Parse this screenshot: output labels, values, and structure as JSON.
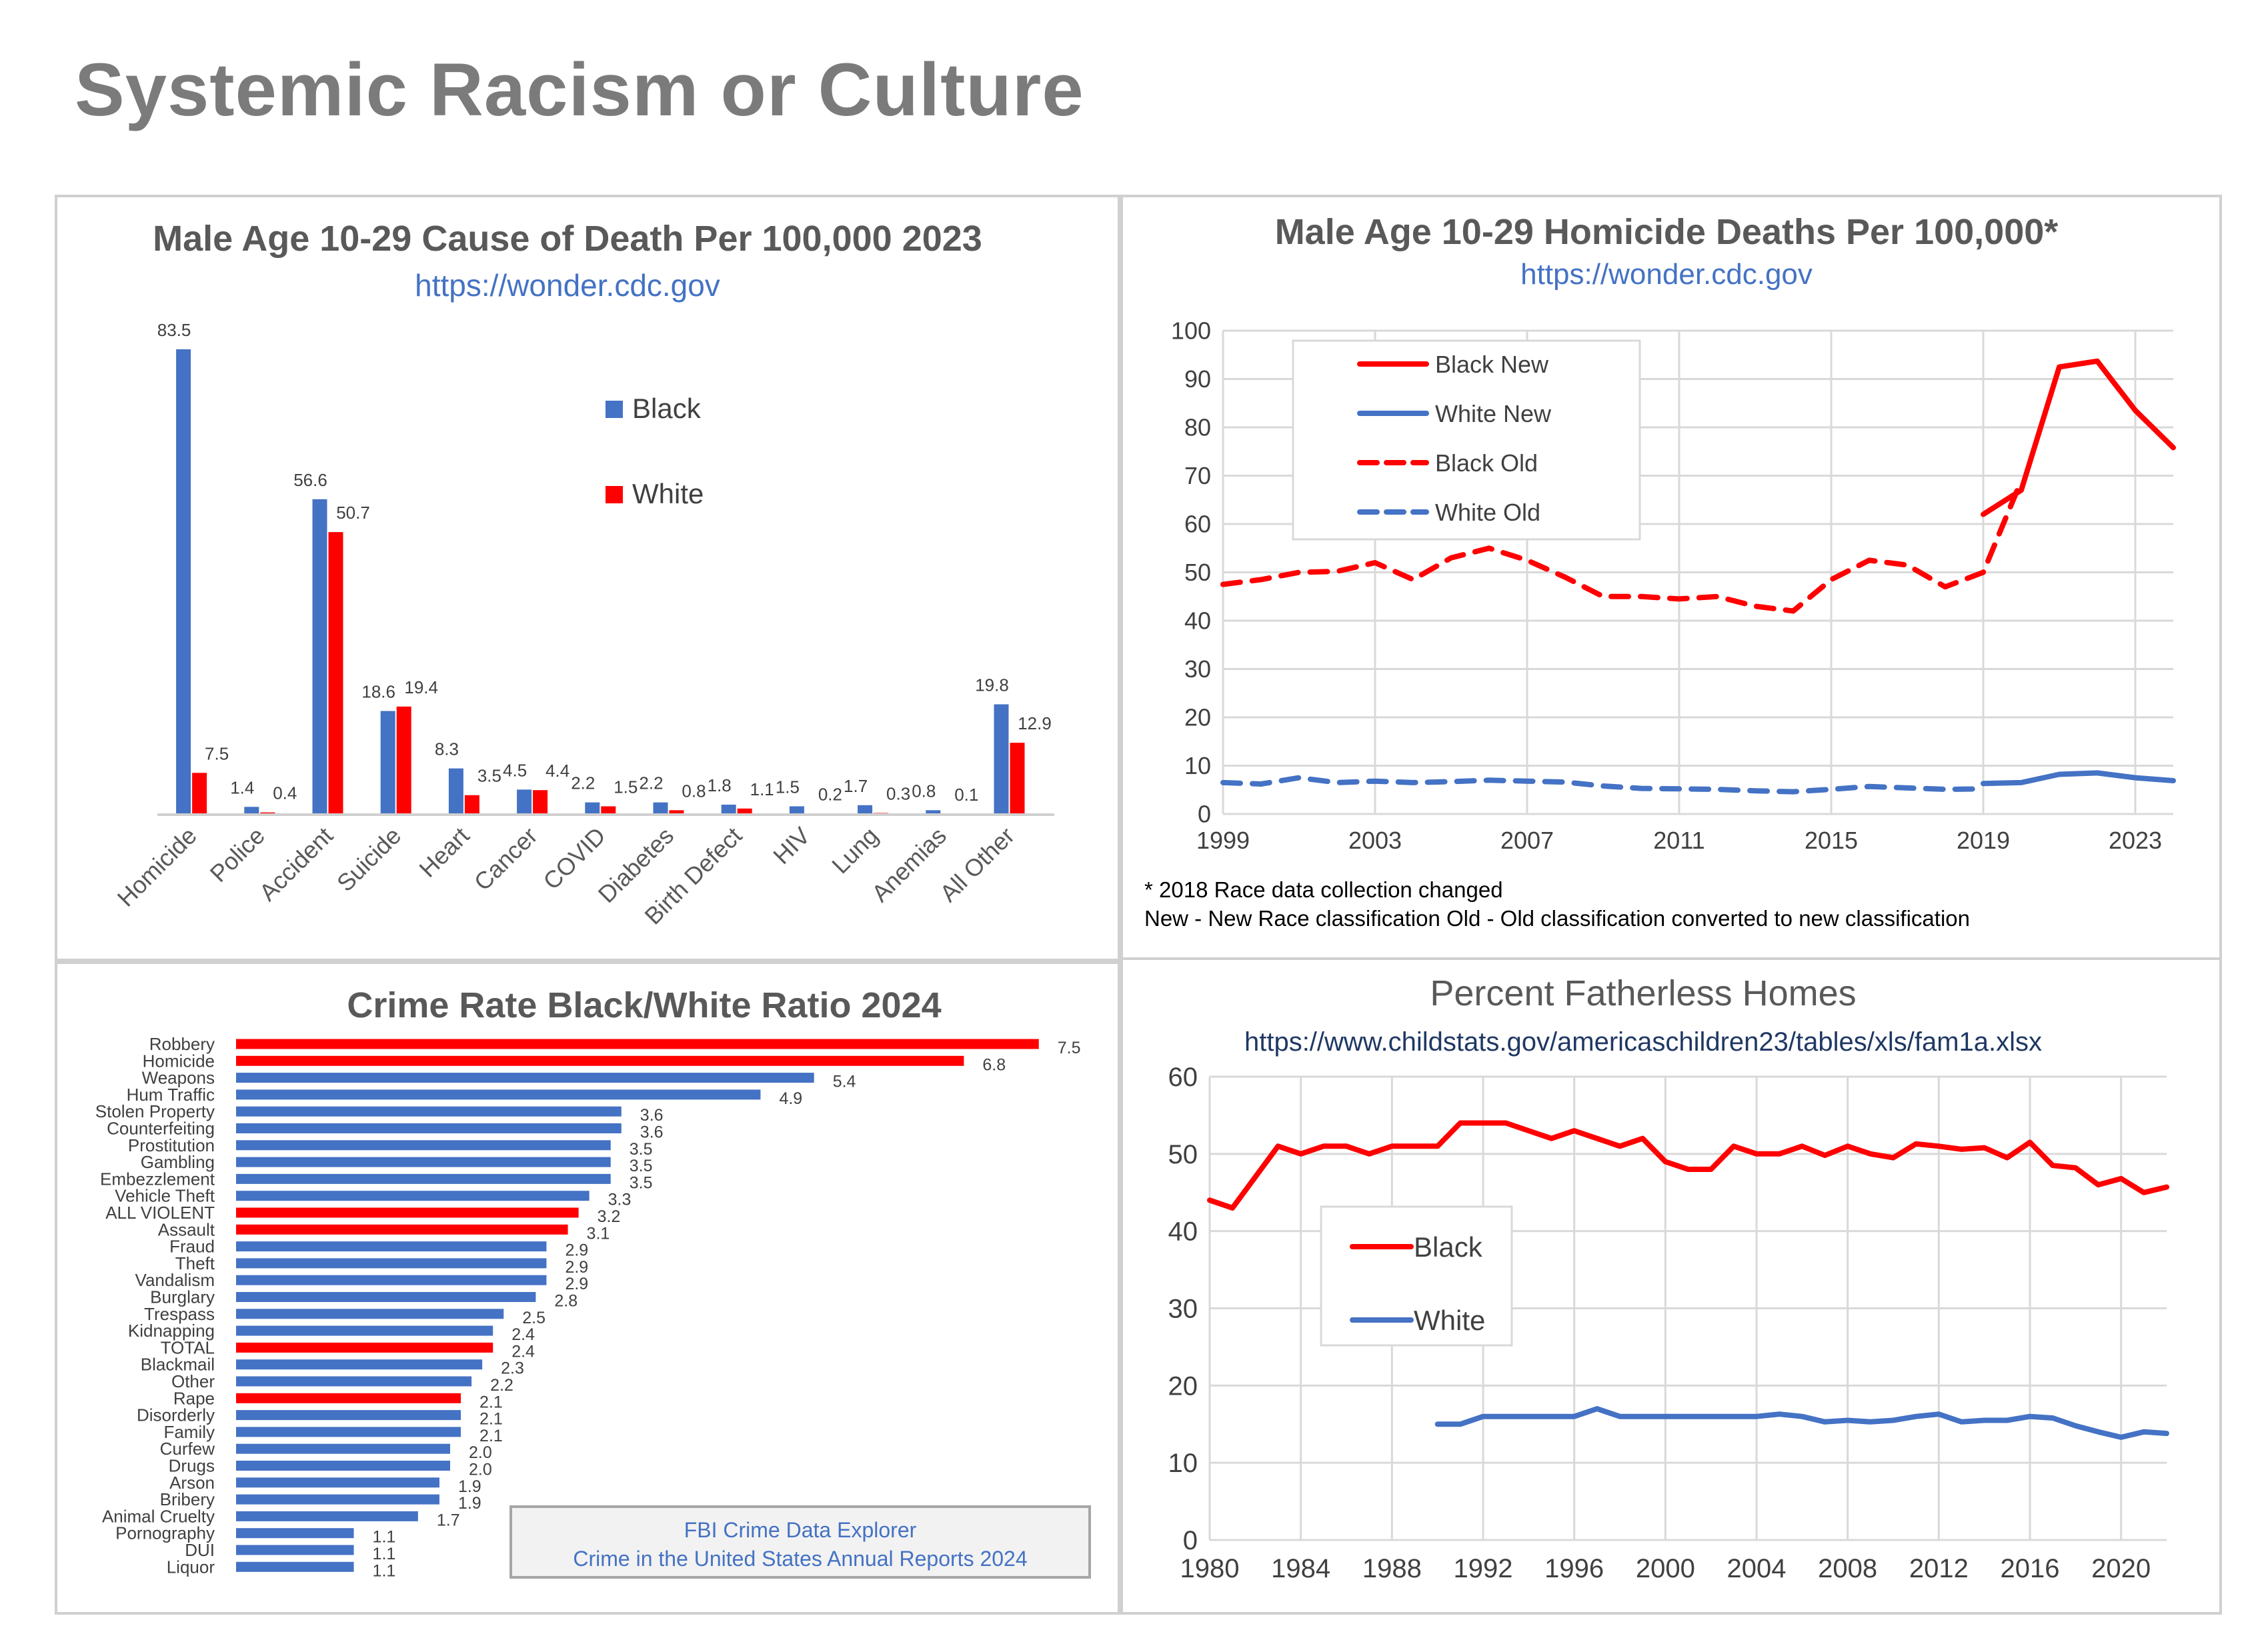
{
  "page": {
    "title": "Systemic Racism or Culture"
  },
  "colors": {
    "black_series": "#ff0000",
    "white_series": "#4472c4",
    "link": "#4472c4",
    "title_gray": "#7b7b7b"
  },
  "chart_data": [
    {
      "type": "bar",
      "title": "Male Age 10-29 Cause of Death Per 100,000 2023",
      "subtitle": "https://wonder.cdc.gov",
      "categories": [
        "Homicide",
        "Police",
        "Accident",
        "Suicide",
        "Heart",
        "Cancer",
        "COVID",
        "Diabetes",
        "Birth Defect",
        "HIV",
        "Lung",
        "Anemias",
        "All Other"
      ],
      "series": [
        {
          "name": "Black",
          "color": "#4472c4",
          "values": [
            83.5,
            1.4,
            56.6,
            18.6,
            8.3,
            4.5,
            2.2,
            2.2,
            1.8,
            1.5,
            1.7,
            0.8,
            19.8
          ],
          "labels": [
            "83.5",
            "1.4",
            "56.6",
            "18.6",
            "8.3",
            "4.5",
            "2.2",
            "2.2",
            "1.8",
            "1.5",
            "1.7",
            "0.8",
            "19.8"
          ]
        },
        {
          "name": "White",
          "color": "#ff0000",
          "values": [
            7.5,
            0.4,
            50.7,
            19.4,
            3.5,
            4.4,
            1.5,
            0.8,
            1.1,
            0.2,
            0.3,
            0.1,
            12.9
          ],
          "labels": [
            "7.5",
            "0.4",
            "50.7",
            "19.4",
            "3.5",
            "4.4",
            "1.5",
            "0.8",
            "1.1",
            "0.2",
            "0.3",
            "0.1",
            "12.9"
          ]
        }
      ],
      "ylim": [
        0,
        90
      ],
      "legend": "right",
      "grid": false
    },
    {
      "type": "line",
      "title": "Male Age 10-29 Homicide Deaths Per 100,000*",
      "subtitle": "https://wonder.cdc.gov",
      "ylim": [
        0,
        100
      ],
      "yticks": [
        "0",
        "10",
        "20",
        "30",
        "40",
        "50",
        "60",
        "70",
        "80",
        "90",
        "100"
      ],
      "xlim": [
        1999,
        2024
      ],
      "xticks": [
        "1999",
        "2003",
        "2007",
        "2011",
        "2015",
        "2019",
        "2023"
      ],
      "series": [
        {
          "name": "Black New",
          "color": "#ff0000",
          "dash": "solid",
          "x": [
            2019,
            2020,
            2021,
            2022,
            2023,
            2024
          ],
          "y": [
            62,
            67,
            92.5,
            93.7,
            83.5,
            75.8
          ]
        },
        {
          "name": "White New",
          "color": "#4472c4",
          "dash": "solid",
          "x": [
            2019,
            2020,
            2021,
            2022,
            2023,
            2024
          ],
          "y": [
            6.3,
            6.5,
            8.2,
            8.5,
            7.5,
            6.9
          ]
        },
        {
          "name": "Black Old",
          "color": "#ff0000",
          "dash": "dashed",
          "x": [
            1999,
            2000,
            2001,
            2002,
            2003,
            2004,
            2005,
            2006,
            2007,
            2008,
            2009,
            2010,
            2011,
            2012,
            2013,
            2014,
            2015,
            2016,
            2017,
            2018,
            2019,
            2020
          ],
          "y": [
            47.5,
            48.5,
            50,
            50.2,
            52,
            48.5,
            53,
            55,
            52.5,
            49,
            45,
            45,
            44.5,
            45,
            43,
            42,
            48.5,
            52.5,
            51.5,
            47,
            50,
            69
          ]
        },
        {
          "name": "White Old",
          "color": "#4472c4",
          "dash": "dashed",
          "x": [
            1999,
            2000,
            2001,
            2002,
            2003,
            2004,
            2005,
            2006,
            2007,
            2008,
            2009,
            2010,
            2011,
            2012,
            2013,
            2014,
            2015,
            2016,
            2017,
            2018,
            2019
          ],
          "y": [
            6.5,
            6.2,
            7.5,
            6.5,
            6.8,
            6.5,
            6.7,
            7,
            6.8,
            6.6,
            5.8,
            5.3,
            5.2,
            5.1,
            4.8,
            4.6,
            5.1,
            5.7,
            5.4,
            5.1,
            5.2
          ]
        }
      ],
      "legend": "top-left",
      "footnotes": [
        "* 2018 Race data collection changed",
        "New - New Race classification   Old - Old classification converted to new classification"
      ]
    },
    {
      "type": "bar",
      "orientation": "horizontal",
      "title": "Crime Rate Black/White Ratio  2024",
      "categories": [
        "Robbery",
        "Homicide",
        "Weapons",
        "Hum Traffic",
        "Stolen Property",
        "Counterfeiting",
        "Prostitution",
        "Gambling",
        "Embezzlement",
        "Vehicle Theft",
        "ALL VIOLENT",
        "Assault",
        "Fraud",
        "Theft",
        "Vandalism",
        "Burglary",
        "Trespass",
        "Kidnapping",
        "TOTAL",
        "Blackmail",
        "Other",
        "Rape",
        "Disorderly",
        "Family",
        "Curfew",
        "Drugs",
        "Arson",
        "Bribery",
        "Animal Cruelty",
        "Pornography",
        "DUI",
        "Liquor"
      ],
      "values": [
        7.5,
        6.8,
        5.4,
        4.9,
        3.6,
        3.6,
        3.5,
        3.5,
        3.5,
        3.3,
        3.2,
        3.1,
        2.9,
        2.9,
        2.9,
        2.8,
        2.5,
        2.4,
        2.4,
        2.3,
        2.2,
        2.1,
        2.1,
        2.1,
        2.0,
        2.0,
        1.9,
        1.9,
        1.7,
        1.1,
        1.1,
        1.1
      ],
      "labels": [
        "7.5",
        "6.8",
        "5.4",
        "4.9",
        "3.6",
        "3.6",
        "3.5",
        "3.5",
        "3.5",
        "3.3",
        "3.2",
        "3.1",
        "2.9",
        "2.9",
        "2.9",
        "2.8",
        "2.5",
        "2.4",
        "2.4",
        "2.3",
        "2.2",
        "2.1",
        "2.1",
        "2.1",
        "2.0",
        "2.0",
        "1.9",
        "1.9",
        "1.7",
        "1.1",
        "1.1",
        "1.1"
      ],
      "highlight": [
        "Robbery",
        "Homicide",
        "ALL VIOLENT",
        "Assault",
        "TOTAL",
        "Rape"
      ],
      "bar_color": "#4472c4",
      "highlight_color": "#ff0000",
      "xlim": [
        0,
        8
      ],
      "source_box": [
        "FBI Crime Data Explorer",
        "Crime in the United States Annual Reports 2024"
      ]
    },
    {
      "type": "line",
      "title": "Percent Fatherless Homes",
      "subtitle": "https://www.childstats.gov/americaschildren23/tables/xls/fam1a.xlsx",
      "ylim": [
        0,
        60
      ],
      "yticks": [
        "0",
        "10",
        "20",
        "30",
        "40",
        "50",
        "60"
      ],
      "xlim": [
        1980,
        2022
      ],
      "xticks": [
        "1980",
        "1984",
        "1988",
        "1992",
        "1996",
        "2000",
        "2004",
        "2008",
        "2012",
        "2016",
        "2020"
      ],
      "series": [
        {
          "name": "Black",
          "color": "#ff0000",
          "x": [
            1980,
            1981,
            1982,
            1983,
            1984,
            1985,
            1986,
            1987,
            1988,
            1989,
            1990,
            1991,
            1992,
            1993,
            1994,
            1995,
            1996,
            1997,
            1998,
            1999,
            2000,
            2001,
            2002,
            2003,
            2004,
            2005,
            2006,
            2007,
            2008,
            2009,
            2010,
            2011,
            2012,
            2013,
            2014,
            2015,
            2016,
            2017,
            2018,
            2019,
            2020,
            2021,
            2022
          ],
          "y": [
            44,
            43,
            47,
            51,
            50,
            51,
            51,
            50,
            51,
            51,
            51,
            54,
            54,
            54,
            53,
            52,
            53,
            52,
            51,
            52,
            49,
            48,
            48,
            51,
            50,
            50,
            51,
            49.8,
            51,
            50,
            49.5,
            51.3,
            51,
            50.6,
            50.8,
            49.5,
            51.5,
            48.5,
            48.2,
            46,
            46.8,
            45,
            45.7
          ]
        },
        {
          "name": "White",
          "color": "#4472c4",
          "x": [
            1990,
            1991,
            1992,
            1993,
            1994,
            1995,
            1996,
            1997,
            1998,
            1999,
            2000,
            2001,
            2002,
            2003,
            2004,
            2005,
            2006,
            2007,
            2008,
            2009,
            2010,
            2011,
            2012,
            2013,
            2014,
            2015,
            2016,
            2017,
            2018,
            2019,
            2020,
            2021,
            2022
          ],
          "y": [
            15,
            15,
            16,
            16,
            16,
            16,
            16,
            17,
            16,
            16,
            16,
            16,
            16,
            16,
            16,
            16.3,
            16,
            15.3,
            15.5,
            15.3,
            15.5,
            16,
            16.3,
            15.3,
            15.5,
            15.5,
            16,
            15.8,
            14.8,
            14,
            13.3,
            14,
            13.8
          ]
        }
      ],
      "legend": "left-middle"
    }
  ]
}
